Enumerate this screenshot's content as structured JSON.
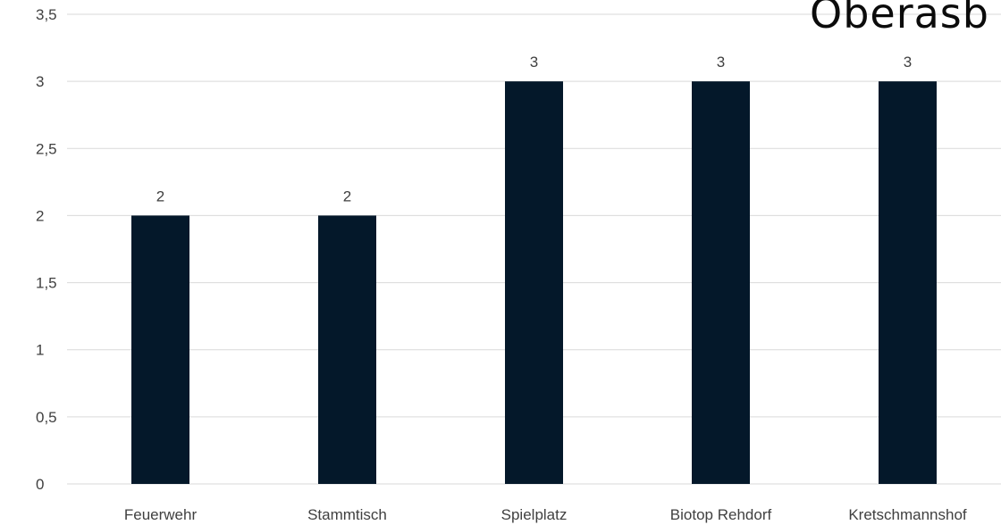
{
  "logo": {
    "text": "Oberasb"
  },
  "chart_data": {
    "type": "bar",
    "title": "",
    "xlabel": "",
    "ylabel": "",
    "categories": [
      "Feuerwehr",
      "Stammtisch",
      "Spielplatz",
      "Biotop Rehdorf",
      "Kretschmannshof"
    ],
    "values": [
      2,
      2,
      3,
      3,
      3
    ],
    "data_labels": [
      "2",
      "2",
      "3",
      "3",
      "3"
    ],
    "ylim": [
      0,
      3.5
    ],
    "yticks": [
      0,
      0.5,
      1,
      1.5,
      2,
      2.5,
      3,
      3.5
    ],
    "ytick_labels": [
      "0",
      "0,5",
      "1",
      "1,5",
      "2",
      "2,5",
      "3",
      "3,5"
    ],
    "grid": true,
    "legend": "none",
    "colors": {
      "bar": "#04182a",
      "grid": "#d9d9d9",
      "text": "#404040"
    }
  }
}
